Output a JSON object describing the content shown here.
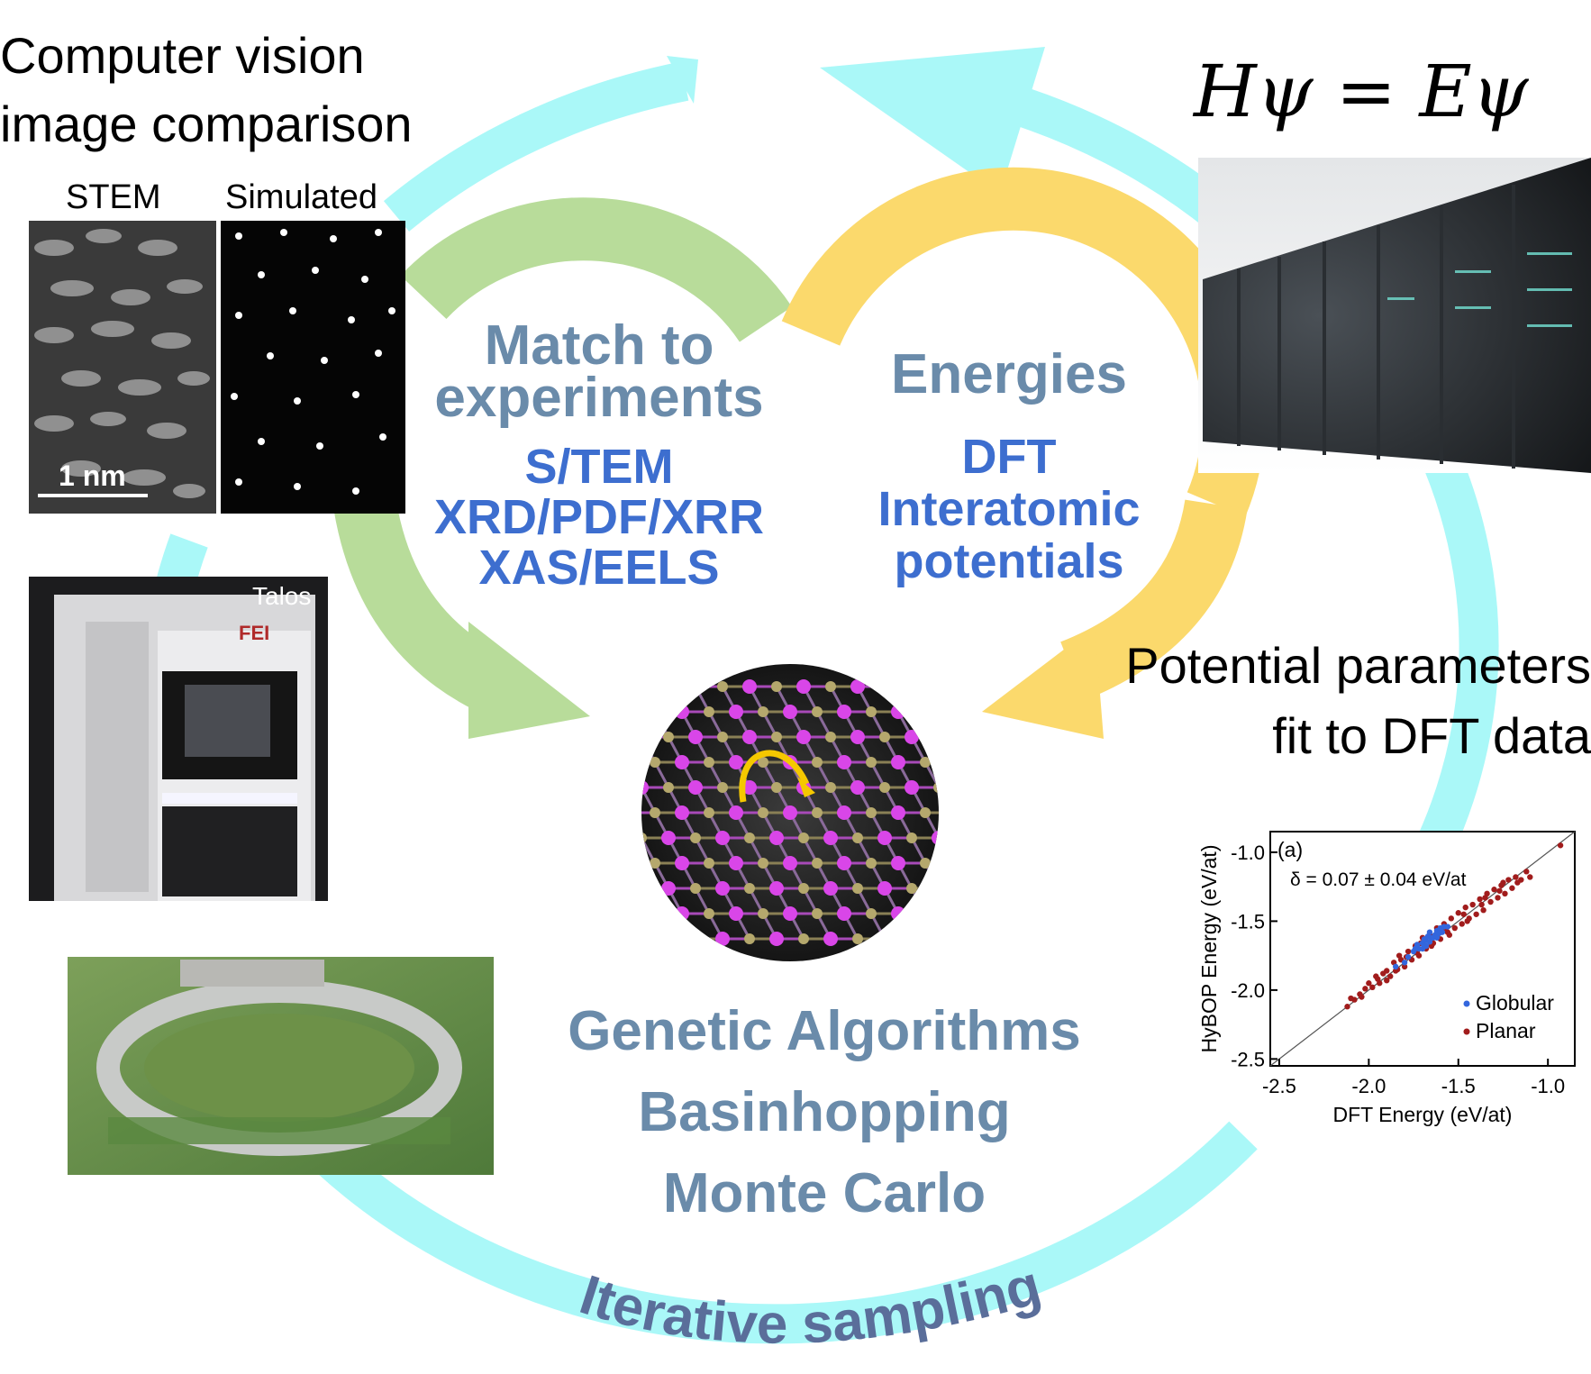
{
  "texts": {
    "cv_line1": "Computer vision",
    "cv_line2": "image comparison",
    "schrodinger": "Hψ = Eψ",
    "match_line1": "Match to",
    "match_line2": "experiments",
    "exp_methods": [
      "S/TEM",
      "XRD/PDF/XRR",
      "XAS/EELS"
    ],
    "energies": "Energies",
    "energy_methods": [
      "DFT",
      "Interatomic",
      "potentials"
    ],
    "pp_line1": "Potential parameters",
    "pp_line2": "fit to DFT data",
    "algorithms": [
      "Genetic Algorithms",
      "Basinhopping",
      "Monte Carlo"
    ],
    "iterative": "Iterative sampling"
  },
  "stem_panel": {
    "stem_label": "STEM",
    "sim_label": "Simulated",
    "scale_label": "1 nm"
  },
  "microscope": {
    "model_label": "Talos",
    "brand_label": "FEI"
  },
  "colors": {
    "cycle_arrow": "#aaf8f8",
    "match_arrow": "#b8dc9a",
    "energy_arrow": "#fbd96c",
    "title_text": "#6a8baa",
    "method_text": "#3d6ecf",
    "atom_a": "#d946e8",
    "atom_b": "#b5a86d",
    "hop_arrow": "#f5c800"
  },
  "chart_data": {
    "type": "scatter",
    "panel_label": "(a)",
    "annotation": "δ = 0.07 ± 0.04 eV/at",
    "xlabel": "DFT Energy (eV/at)",
    "ylabel": "HyBOP Energy (eV/at)",
    "xlim": [
      -2.55,
      -0.85
    ],
    "ylim": [
      -2.55,
      -0.85
    ],
    "x_ticks": [
      "-2.5",
      "-2.0",
      "-1.5",
      "-1.0"
    ],
    "y_ticks": [
      "-1.0",
      "-1.5",
      "-2.0",
      "-2.5"
    ],
    "x_tick_values": [
      -2.5,
      -2.0,
      -1.5,
      -1.0
    ],
    "y_tick_values": [
      -1.0,
      -1.5,
      -2.0,
      -2.5
    ],
    "reference_line": "y = x",
    "legend_position": "bottom-right",
    "series": [
      {
        "name": "Globular",
        "color": "#3366dd",
        "points": [
          [
            -1.75,
            -1.72
          ],
          [
            -1.72,
            -1.7
          ],
          [
            -1.7,
            -1.66
          ],
          [
            -1.68,
            -1.64
          ],
          [
            -1.65,
            -1.62
          ],
          [
            -1.63,
            -1.6
          ],
          [
            -1.62,
            -1.57
          ],
          [
            -1.6,
            -1.55
          ],
          [
            -1.58,
            -1.54
          ],
          [
            -1.78,
            -1.76
          ],
          [
            -1.66,
            -1.58
          ],
          [
            -1.64,
            -1.62
          ],
          [
            -1.7,
            -1.7
          ],
          [
            -1.61,
            -1.59
          ],
          [
            -1.59,
            -1.58
          ],
          [
            -1.68,
            -1.68
          ],
          [
            -1.74,
            -1.7
          ],
          [
            -1.56,
            -1.54
          ],
          [
            -1.8,
            -1.8
          ],
          [
            -1.67,
            -1.61
          ],
          [
            -1.85,
            -1.83
          ],
          [
            -1.62,
            -1.62
          ],
          [
            -1.73,
            -1.67
          ],
          [
            -1.69,
            -1.63
          ],
          [
            -1.66,
            -1.65
          ],
          [
            -1.6,
            -1.57
          ]
        ]
      },
      {
        "name": "Planar",
        "color": "#a11c1c",
        "points": [
          [
            -2.12,
            -2.12
          ],
          [
            -2.08,
            -2.07
          ],
          [
            -2.05,
            -2.03
          ],
          [
            -2.02,
            -1.99
          ],
          [
            -2.0,
            -1.95
          ],
          [
            -1.98,
            -1.98
          ],
          [
            -1.95,
            -1.92
          ],
          [
            -1.92,
            -1.88
          ],
          [
            -1.9,
            -1.86
          ],
          [
            -1.88,
            -1.9
          ],
          [
            -1.86,
            -1.8
          ],
          [
            -1.85,
            -1.86
          ],
          [
            -1.82,
            -1.78
          ],
          [
            -1.8,
            -1.83
          ],
          [
            -1.78,
            -1.72
          ],
          [
            -1.76,
            -1.78
          ],
          [
            -1.74,
            -1.68
          ],
          [
            -1.72,
            -1.75
          ],
          [
            -1.7,
            -1.62
          ],
          [
            -1.68,
            -1.7
          ],
          [
            -1.66,
            -1.6
          ],
          [
            -1.64,
            -1.66
          ],
          [
            -1.62,
            -1.55
          ],
          [
            -1.6,
            -1.63
          ],
          [
            -1.58,
            -1.52
          ],
          [
            -1.56,
            -1.58
          ],
          [
            -1.54,
            -1.48
          ],
          [
            -1.52,
            -1.55
          ],
          [
            -1.5,
            -1.44
          ],
          [
            -1.48,
            -1.52
          ],
          [
            -1.46,
            -1.4
          ],
          [
            -1.44,
            -1.48
          ],
          [
            -1.42,
            -1.38
          ],
          [
            -1.4,
            -1.45
          ],
          [
            -1.38,
            -1.34
          ],
          [
            -1.36,
            -1.42
          ],
          [
            -1.34,
            -1.3
          ],
          [
            -1.32,
            -1.36
          ],
          [
            -1.3,
            -1.27
          ],
          [
            -1.28,
            -1.33
          ],
          [
            -1.26,
            -1.24
          ],
          [
            -1.24,
            -1.3
          ],
          [
            -1.22,
            -1.2
          ],
          [
            -1.2,
            -1.26
          ],
          [
            -1.18,
            -1.18
          ],
          [
            -1.15,
            -1.2
          ],
          [
            -1.12,
            -1.14
          ],
          [
            -1.1,
            -1.18
          ],
          [
            -1.96,
            -1.9
          ],
          [
            -1.9,
            -1.93
          ],
          [
            -1.84,
            -1.85
          ],
          [
            -1.79,
            -1.76
          ],
          [
            -1.71,
            -1.66
          ],
          [
            -1.65,
            -1.68
          ],
          [
            -1.57,
            -1.56
          ],
          [
            -1.47,
            -1.45
          ],
          [
            -1.37,
            -1.38
          ],
          [
            -1.27,
            -1.28
          ],
          [
            -1.17,
            -1.22
          ],
          [
            -2.1,
            -2.06
          ],
          [
            -2.04,
            -2.05
          ],
          [
            -1.94,
            -1.95
          ],
          [
            -1.83,
            -1.75
          ],
          [
            -1.73,
            -1.73
          ],
          [
            -1.55,
            -1.6
          ],
          [
            -1.45,
            -1.5
          ],
          [
            -1.35,
            -1.33
          ],
          [
            -1.25,
            -1.22
          ],
          [
            -0.93,
            -0.95
          ]
        ]
      }
    ]
  }
}
